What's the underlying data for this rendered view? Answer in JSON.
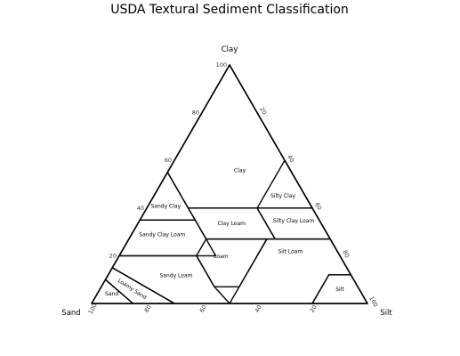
{
  "chart_data": {
    "type": "ternary",
    "title": "USDA Textural Sediment Classification",
    "axes": {
      "top": "Clay",
      "left": "Sand",
      "right": "Silt"
    },
    "ticks": {
      "clay": [
        "20",
        "40",
        "60",
        "80",
        "100"
      ],
      "silt": [
        "20",
        "40",
        "60",
        "80",
        "100"
      ],
      "sand": [
        "100",
        "80",
        "60",
        "40",
        "20"
      ]
    },
    "grid": false,
    "regions": [
      {
        "name": "Clay",
        "polygon": [
          [
            0,
            40,
            60
          ],
          [
            0,
            60,
            40
          ],
          [
            0,
            100,
            0
          ],
          [
            45,
            55,
            0
          ],
          [
            45,
            40,
            15
          ],
          [
            20,
            40,
            40
          ]
        ]
      },
      {
        "name": "Sandy Clay",
        "polygon": [
          [
            45,
            35,
            20
          ],
          [
            65,
            35,
            0
          ],
          [
            45,
            55,
            0
          ]
        ]
      },
      {
        "name": "Silty Clay",
        "polygon": [
          [
            0,
            40,
            60
          ],
          [
            0,
            60,
            40
          ],
          [
            20,
            40,
            40
          ]
        ]
      },
      {
        "name": "Sandy Clay Loam",
        "polygon": [
          [
            45,
            20,
            35
          ],
          [
            80,
            20,
            0
          ],
          [
            65,
            35,
            0
          ],
          [
            45,
            35,
            20
          ]
        ]
      },
      {
        "name": "Clay Loam",
        "polygon": [
          [
            20,
            27,
            53
          ],
          [
            45,
            27,
            28
          ],
          [
            45,
            40,
            15
          ],
          [
            20,
            40,
            40
          ]
        ]
      },
      {
        "name": "Silty Clay Loam",
        "polygon": [
          [
            0,
            27,
            73
          ],
          [
            20,
            27,
            53
          ],
          [
            20,
            40,
            40
          ],
          [
            0,
            40,
            60
          ]
        ]
      },
      {
        "name": "Loam",
        "polygon": [
          [
            23,
            27,
            50
          ],
          [
            45,
            27,
            28
          ],
          [
            52,
            20,
            28
          ],
          [
            52,
            7,
            41
          ],
          [
            43,
            7,
            50
          ]
        ]
      },
      {
        "name": "Sandy Loam",
        "polygon": [
          [
            52,
            7,
            41
          ],
          [
            52,
            20,
            28
          ],
          [
            80,
            20,
            0
          ],
          [
            85,
            15,
            0
          ],
          [
            70,
            0,
            30
          ],
          [
            50,
            0,
            50
          ]
        ]
      },
      {
        "name": "Silt Loam",
        "polygon": [
          [
            0,
            12,
            88
          ],
          [
            8,
            12,
            80
          ],
          [
            20,
            0,
            80
          ],
          [
            50,
            0,
            50
          ],
          [
            43,
            7,
            50
          ],
          [
            23,
            27,
            50
          ],
          [
            0,
            27,
            73
          ]
        ]
      },
      {
        "name": "Silt",
        "polygon": [
          [
            0,
            0,
            100
          ],
          [
            0,
            12,
            88
          ],
          [
            8,
            12,
            80
          ],
          [
            20,
            0,
            80
          ]
        ]
      },
      {
        "name": "Loamy Sand",
        "polygon": [
          [
            70,
            0,
            30
          ],
          [
            85,
            15,
            0
          ],
          [
            90,
            10,
            0
          ],
          [
            85,
            0,
            15
          ]
        ]
      },
      {
        "name": "Sand",
        "polygon": [
          [
            85,
            0,
            15
          ],
          [
            90,
            10,
            0
          ],
          [
            100,
            0,
            0
          ]
        ]
      }
    ]
  }
}
